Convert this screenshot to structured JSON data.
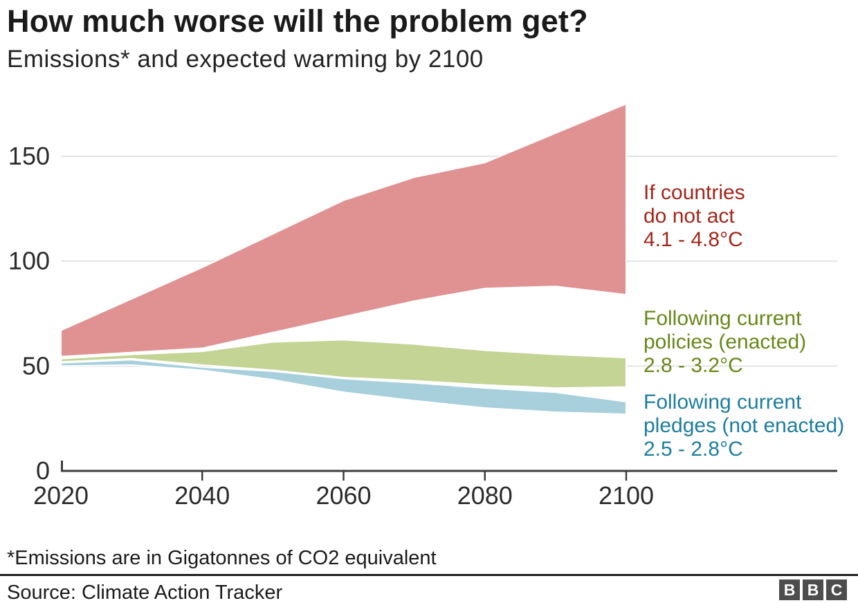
{
  "header": {
    "title": "How much worse will the problem get?",
    "subtitle": "Emissions* and expected warming by 2100"
  },
  "chart_data": {
    "type": "area",
    "title": "How much worse will the problem get?",
    "subtitle": "Emissions* and expected warming by 2100",
    "unit_note": "Emissions are in Gigatonnes of CO2 equivalent",
    "x": [
      2020,
      2030,
      2040,
      2050,
      2060,
      2070,
      2080,
      2090,
      2100
    ],
    "xticks": [
      2020,
      2040,
      2060,
      2080,
      2100
    ],
    "yticks": [
      0,
      50,
      100,
      150
    ],
    "xlim": [
      2020,
      2100
    ],
    "ylim": [
      0,
      178
    ],
    "grid": true,
    "grid_color": "#e2e2e2",
    "axis_color": "#3d3d3d",
    "tick_label_color": "#2b2b2b",
    "legend_position": "right-annotations",
    "series": [
      {
        "name": "If countries do not act",
        "warming_range": "4.1 - 4.8°C",
        "fill_color": "#e09192",
        "label_color": "#a3261a",
        "upper": [
          67,
          82,
          97,
          113,
          129,
          140,
          147,
          161,
          175
        ],
        "lower": [
          54.5,
          56.5,
          58.5,
          66,
          73.5,
          81,
          87,
          88,
          84
        ]
      },
      {
        "name": "Following current policies (enacted)",
        "warming_range": "2.8 - 3.2°C",
        "fill_color": "#c3d494",
        "label_color": "#678718",
        "upper": [
          53.5,
          55.5,
          57,
          61.5,
          62.5,
          60.5,
          57.5,
          55.5,
          54
        ],
        "lower": [
          52,
          53.5,
          50.5,
          48,
          44.5,
          43,
          41,
          39.5,
          40
        ]
      },
      {
        "name": "Following current pledges (not enacted)",
        "warming_range": "2.5 - 2.8°C",
        "fill_color": "#a7cfdc",
        "label_color": "#1d7d9e",
        "upper": [
          51.5,
          53,
          49.5,
          47.5,
          44,
          42,
          39.5,
          37.5,
          33
        ],
        "lower": [
          50,
          50.5,
          48,
          43.5,
          37.5,
          33.5,
          30,
          28,
          27
        ]
      }
    ]
  },
  "annotations": [
    {
      "color": "#a3261a",
      "lines": [
        "If countries",
        "do not act",
        "4.1 - 4.8°C"
      ]
    },
    {
      "color": "#678718",
      "lines": [
        "Following current",
        "policies (enacted)",
        "2.8 - 3.2°C"
      ]
    },
    {
      "color": "#1d7d9e",
      "lines": [
        "Following current",
        "pledges (not enacted)",
        "2.5 - 2.8°C"
      ]
    }
  ],
  "footer": {
    "footnote": "*Emissions are in Gigatonnes of CO2 equivalent",
    "source": "Source: Climate Action Tracker",
    "logo": [
      "B",
      "B",
      "C"
    ]
  }
}
